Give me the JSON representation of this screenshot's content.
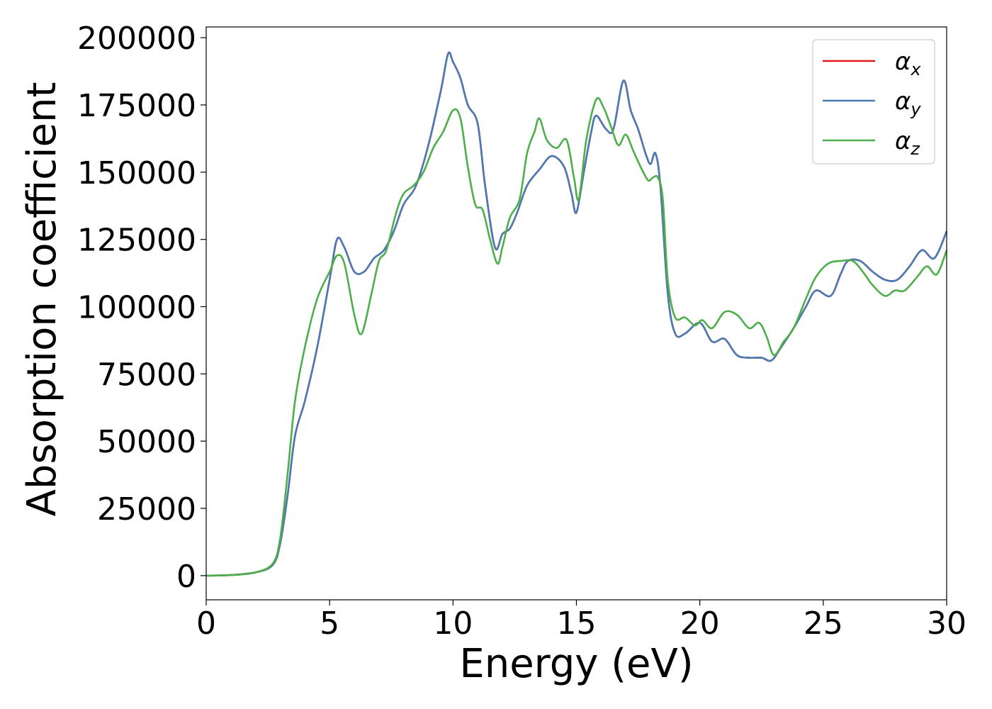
{
  "chart_data": {
    "type": "line",
    "title": "",
    "xlabel": "Energy (eV)",
    "ylabel": "Absorption coefficient",
    "xlim": [
      0,
      30
    ],
    "ylim": [
      -9000,
      204000
    ],
    "xticks": [
      "0",
      "5",
      "10",
      "15",
      "20",
      "25",
      "30"
    ],
    "yticks": [
      "0",
      "25000",
      "50000",
      "75000",
      "100000",
      "125000",
      "150000",
      "175000",
      "200000"
    ],
    "grid": false,
    "legend_position": "top-right",
    "series": [
      {
        "name": "αx",
        "base": "α",
        "sub": "x",
        "color": "#e41a1c",
        "points": [
          [
            0,
            0
          ],
          [
            1,
            200
          ],
          [
            2,
            1200
          ],
          [
            2.7,
            4000
          ],
          [
            3.0,
            12000
          ],
          [
            3.3,
            30000
          ],
          [
            3.6,
            52000
          ],
          [
            4.0,
            65000
          ],
          [
            4.5,
            85000
          ],
          [
            5.0,
            110000
          ],
          [
            5.3,
            125000
          ],
          [
            5.6,
            122000
          ],
          [
            6.0,
            113000
          ],
          [
            6.4,
            113000
          ],
          [
            6.8,
            118000
          ],
          [
            7.2,
            121000
          ],
          [
            7.6,
            128000
          ],
          [
            8.0,
            138000
          ],
          [
            8.5,
            145000
          ],
          [
            9.0,
            160000
          ],
          [
            9.5,
            180000
          ],
          [
            9.8,
            194000
          ],
          [
            10.0,
            191000
          ],
          [
            10.3,
            185000
          ],
          [
            10.6,
            175000
          ],
          [
            11.0,
            168000
          ],
          [
            11.3,
            145000
          ],
          [
            11.7,
            122000
          ],
          [
            12.0,
            127000
          ],
          [
            12.3,
            129000
          ],
          [
            12.6,
            135000
          ],
          [
            13.0,
            145000
          ],
          [
            13.5,
            151000
          ],
          [
            14.0,
            156000
          ],
          [
            14.5,
            152000
          ],
          [
            14.8,
            142000
          ],
          [
            15.0,
            135000
          ],
          [
            15.3,
            150000
          ],
          [
            15.6,
            165000
          ],
          [
            15.8,
            171000
          ],
          [
            16.2,
            166000
          ],
          [
            16.5,
            166000
          ],
          [
            16.9,
            184000
          ],
          [
            17.2,
            173000
          ],
          [
            17.5,
            166000
          ],
          [
            17.8,
            157000
          ],
          [
            18.0,
            153000
          ],
          [
            18.2,
            157000
          ],
          [
            18.4,
            145000
          ],
          [
            18.7,
            105000
          ],
          [
            19.0,
            90000
          ],
          [
            19.4,
            90000
          ],
          [
            20.0,
            94000
          ],
          [
            20.5,
            87000
          ],
          [
            21.0,
            88000
          ],
          [
            21.5,
            82000
          ],
          [
            22.0,
            81000
          ],
          [
            22.5,
            81000
          ],
          [
            22.9,
            80000
          ],
          [
            23.3,
            85000
          ],
          [
            23.8,
            92000
          ],
          [
            24.3,
            100000
          ],
          [
            24.7,
            106000
          ],
          [
            25.3,
            104000
          ],
          [
            25.7,
            112000
          ],
          [
            26.0,
            117000
          ],
          [
            26.5,
            117000
          ],
          [
            27.0,
            113000
          ],
          [
            27.5,
            110000
          ],
          [
            28.0,
            110000
          ],
          [
            28.5,
            115000
          ],
          [
            29.0,
            121000
          ],
          [
            29.5,
            118000
          ],
          [
            30.0,
            128000
          ]
        ]
      },
      {
        "name": "αy",
        "base": "α",
        "sub": "y",
        "color": "#4a7bb5",
        "points": [
          [
            0,
            0
          ],
          [
            1,
            200
          ],
          [
            2,
            1200
          ],
          [
            2.7,
            4000
          ],
          [
            3.0,
            12000
          ],
          [
            3.3,
            30000
          ],
          [
            3.6,
            52000
          ],
          [
            4.0,
            65000
          ],
          [
            4.5,
            85000
          ],
          [
            5.0,
            110000
          ],
          [
            5.3,
            125000
          ],
          [
            5.6,
            122000
          ],
          [
            6.0,
            113000
          ],
          [
            6.4,
            113000
          ],
          [
            6.8,
            118000
          ],
          [
            7.2,
            121000
          ],
          [
            7.6,
            128000
          ],
          [
            8.0,
            138000
          ],
          [
            8.5,
            145000
          ],
          [
            9.0,
            160000
          ],
          [
            9.5,
            180000
          ],
          [
            9.8,
            194000
          ],
          [
            10.0,
            191000
          ],
          [
            10.3,
            185000
          ],
          [
            10.6,
            175000
          ],
          [
            11.0,
            168000
          ],
          [
            11.3,
            145000
          ],
          [
            11.7,
            122000
          ],
          [
            12.0,
            127000
          ],
          [
            12.3,
            129000
          ],
          [
            12.6,
            135000
          ],
          [
            13.0,
            145000
          ],
          [
            13.5,
            151000
          ],
          [
            14.0,
            156000
          ],
          [
            14.5,
            152000
          ],
          [
            14.8,
            142000
          ],
          [
            15.0,
            135000
          ],
          [
            15.3,
            150000
          ],
          [
            15.6,
            165000
          ],
          [
            15.8,
            171000
          ],
          [
            16.2,
            166000
          ],
          [
            16.5,
            166000
          ],
          [
            16.9,
            184000
          ],
          [
            17.2,
            173000
          ],
          [
            17.5,
            166000
          ],
          [
            17.8,
            157000
          ],
          [
            18.0,
            153000
          ],
          [
            18.2,
            157000
          ],
          [
            18.4,
            145000
          ],
          [
            18.7,
            105000
          ],
          [
            19.0,
            90000
          ],
          [
            19.4,
            90000
          ],
          [
            20.0,
            94000
          ],
          [
            20.5,
            87000
          ],
          [
            21.0,
            88000
          ],
          [
            21.5,
            82000
          ],
          [
            22.0,
            81000
          ],
          [
            22.5,
            81000
          ],
          [
            22.9,
            80000
          ],
          [
            23.3,
            85000
          ],
          [
            23.8,
            92000
          ],
          [
            24.3,
            100000
          ],
          [
            24.7,
            106000
          ],
          [
            25.3,
            104000
          ],
          [
            25.7,
            112000
          ],
          [
            26.0,
            117000
          ],
          [
            26.5,
            117000
          ],
          [
            27.0,
            113000
          ],
          [
            27.5,
            110000
          ],
          [
            28.0,
            110000
          ],
          [
            28.5,
            115000
          ],
          [
            29.0,
            121000
          ],
          [
            29.5,
            118000
          ],
          [
            30.0,
            128000
          ]
        ]
      },
      {
        "name": "αz",
        "base": "α",
        "sub": "z",
        "color": "#4daf4a",
        "points": [
          [
            0,
            0
          ],
          [
            1,
            200
          ],
          [
            2,
            1200
          ],
          [
            2.7,
            4500
          ],
          [
            3.0,
            14000
          ],
          [
            3.3,
            38000
          ],
          [
            3.6,
            65000
          ],
          [
            4.0,
            85000
          ],
          [
            4.5,
            103000
          ],
          [
            5.0,
            113000
          ],
          [
            5.3,
            119000
          ],
          [
            5.6,
            116000
          ],
          [
            6.0,
            97000
          ],
          [
            6.3,
            90000
          ],
          [
            6.7,
            105000
          ],
          [
            7.0,
            117000
          ],
          [
            7.3,
            121000
          ],
          [
            7.7,
            135000
          ],
          [
            8.0,
            142000
          ],
          [
            8.4,
            145000
          ],
          [
            8.8,
            150000
          ],
          [
            9.2,
            159000
          ],
          [
            9.6,
            165000
          ],
          [
            10.0,
            173000
          ],
          [
            10.3,
            170000
          ],
          [
            10.6,
            152000
          ],
          [
            10.9,
            138000
          ],
          [
            11.2,
            136000
          ],
          [
            11.5,
            125000
          ],
          [
            11.8,
            116000
          ],
          [
            12.0,
            122000
          ],
          [
            12.3,
            133000
          ],
          [
            12.7,
            140000
          ],
          [
            13.0,
            157000
          ],
          [
            13.3,
            165000
          ],
          [
            13.5,
            170000
          ],
          [
            13.8,
            162000
          ],
          [
            14.2,
            159000
          ],
          [
            14.6,
            162000
          ],
          [
            14.9,
            148000
          ],
          [
            15.1,
            140000
          ],
          [
            15.4,
            162000
          ],
          [
            15.8,
            177000
          ],
          [
            16.1,
            174000
          ],
          [
            16.4,
            167000
          ],
          [
            16.7,
            160000
          ],
          [
            17.0,
            164000
          ],
          [
            17.3,
            158000
          ],
          [
            17.6,
            152000
          ],
          [
            17.9,
            147000
          ],
          [
            18.1,
            148000
          ],
          [
            18.3,
            148000
          ],
          [
            18.5,
            140000
          ],
          [
            18.7,
            110000
          ],
          [
            19.0,
            96000
          ],
          [
            19.4,
            96000
          ],
          [
            19.8,
            93000
          ],
          [
            20.1,
            95000
          ],
          [
            20.5,
            92000
          ],
          [
            21.0,
            98000
          ],
          [
            21.5,
            97000
          ],
          [
            22.0,
            92000
          ],
          [
            22.4,
            94000
          ],
          [
            22.7,
            89000
          ],
          [
            23.0,
            82000
          ],
          [
            23.4,
            87000
          ],
          [
            23.8,
            92000
          ],
          [
            24.3,
            103000
          ],
          [
            24.7,
            111000
          ],
          [
            25.2,
            116000
          ],
          [
            25.7,
            117000
          ],
          [
            26.2,
            117000
          ],
          [
            26.6,
            113000
          ],
          [
            27.0,
            108000
          ],
          [
            27.5,
            104000
          ],
          [
            27.9,
            106000
          ],
          [
            28.3,
            106000
          ],
          [
            28.8,
            111000
          ],
          [
            29.2,
            115000
          ],
          [
            29.6,
            112000
          ],
          [
            30.0,
            121000
          ]
        ]
      }
    ]
  }
}
